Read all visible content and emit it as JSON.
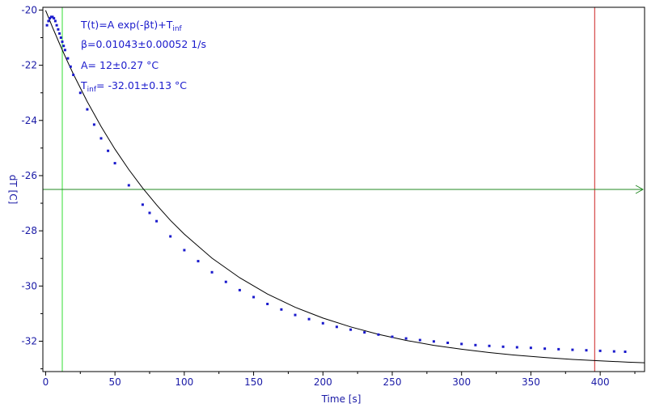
{
  "chart_data": {
    "type": "scatter",
    "title": "",
    "xlabel": "Time [s]",
    "ylabel": "dT [C]",
    "xlim": [
      -2,
      432
    ],
    "ylim": [
      -33.1,
      -19.9
    ],
    "x_ticks": [
      0,
      50,
      100,
      150,
      200,
      250,
      300,
      350,
      400
    ],
    "y_ticks": [
      -20,
      -22,
      -24,
      -26,
      -28,
      -30,
      -32
    ],
    "x_tick_labels": [
      "0",
      "50",
      "100",
      "150",
      "200",
      "250",
      "300",
      "350",
      "400"
    ],
    "y_tick_labels": [
      "-20",
      "-22",
      "-24",
      "-26",
      "-28",
      "-30",
      "-32"
    ],
    "grid": false,
    "legend": "none",
    "series": [
      {
        "kind": "measured",
        "color": "#1a1acc",
        "x": [
          1,
          2,
          3,
          4,
          5,
          6,
          7,
          8,
          9,
          10,
          11,
          12,
          13,
          14,
          16,
          18,
          20,
          25,
          30,
          35,
          40,
          45,
          50,
          60,
          70,
          75,
          80,
          90,
          100,
          110,
          120,
          130,
          140,
          150,
          160,
          170,
          180,
          190,
          200,
          210,
          220,
          230,
          240,
          250,
          260,
          270,
          280,
          290,
          300,
          310,
          320,
          330,
          340,
          350,
          360,
          370,
          380,
          390,
          400,
          410,
          418
        ],
        "y": [
          -20.55,
          -20.4,
          -20.3,
          -20.25,
          -20.25,
          -20.3,
          -20.4,
          -20.55,
          -20.7,
          -20.85,
          -21.0,
          -21.15,
          -21.3,
          -21.45,
          -21.75,
          -22.05,
          -22.35,
          -23.0,
          -23.6,
          -24.15,
          -24.65,
          -25.1,
          -25.55,
          -26.35,
          -27.05,
          -27.35,
          -27.65,
          -28.2,
          -28.7,
          -29.1,
          -29.5,
          -29.85,
          -30.15,
          -30.4,
          -30.65,
          -30.85,
          -31.05,
          -31.2,
          -31.35,
          -31.48,
          -31.58,
          -31.68,
          -31.76,
          -31.84,
          -31.9,
          -31.96,
          -32.01,
          -32.06,
          -32.1,
          -32.14,
          -32.17,
          -32.2,
          -32.22,
          -32.24,
          -32.27,
          -32.29,
          -32.31,
          -32.33,
          -32.35,
          -32.37,
          -32.38
        ]
      },
      {
        "kind": "fit",
        "color": "#000000",
        "x": [
          0,
          5,
          10,
          15,
          20,
          30,
          40,
          50,
          60,
          70,
          80,
          90,
          100,
          120,
          140,
          160,
          180,
          200,
          220,
          240,
          260,
          280,
          300,
          320,
          340,
          360,
          380,
          400,
          420,
          432
        ],
        "y": [
          -20.01,
          -20.63,
          -21.22,
          -21.78,
          -22.32,
          -23.32,
          -24.22,
          -25.04,
          -25.78,
          -26.45,
          -27.06,
          -27.62,
          -28.12,
          -28.99,
          -29.7,
          -30.29,
          -30.77,
          -31.16,
          -31.48,
          -31.75,
          -31.97,
          -32.15,
          -32.29,
          -32.41,
          -32.51,
          -32.59,
          -32.66,
          -32.71,
          -32.76,
          -32.78
        ]
      }
    ],
    "cursors": [
      {
        "axis": "x",
        "value": 12,
        "color": "#33dd33"
      },
      {
        "axis": "x",
        "value": 396,
        "color": "#cc2222"
      },
      {
        "axis": "y",
        "value": -26.5,
        "color": "#228822"
      }
    ],
    "annotations": {
      "formula_main": "T(t)=A exp(-βt)+T",
      "formula_sub": "inf",
      "beta": "β=0.01043±0.00052 1/s",
      "amplitude": "A= 12±0.27 °C",
      "tinf_main": "T",
      "tinf_sub": "inf",
      "tinf_value": "= -32.01±0.13 °C"
    }
  }
}
